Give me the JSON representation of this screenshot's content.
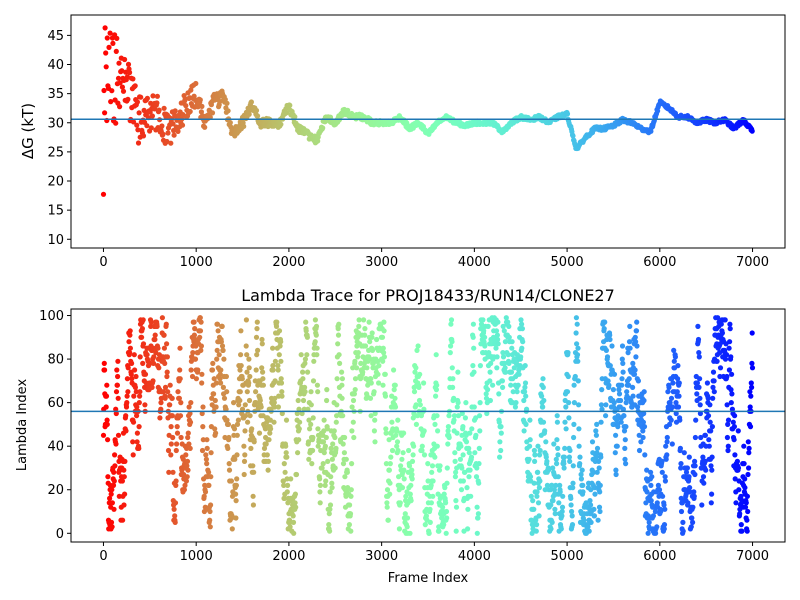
{
  "chart_data": [
    {
      "type": "scatter",
      "title": "",
      "xlabel": "",
      "ylabel": "ΔG (kT)",
      "xlim": [
        -350,
        7350
      ],
      "ylim": [
        8.5,
        48.5
      ],
      "xticks": [
        0,
        1000,
        2000,
        3000,
        4000,
        5000,
        6000,
        7000
      ],
      "yticks": [
        10,
        15,
        20,
        25,
        30,
        35,
        40,
        45
      ],
      "hline": 30.6,
      "colormap": "rainbow (reversed: red at frame 0, violet at last frame)",
      "n_frames": 7000,
      "series": [
        {
          "x": [
            0,
            50,
            100,
            150,
            200,
            300,
            400,
            500,
            600,
            700,
            800,
            900,
            1000,
            1100,
            1200,
            1300,
            1400,
            1500,
            1600,
            1700,
            1800,
            1900,
            2000,
            2100,
            2200,
            2300,
            2400,
            2500,
            2600,
            2700,
            2800,
            2900,
            3000,
            3100,
            3200,
            3300,
            3400,
            3500,
            3600,
            3700,
            3800,
            3900,
            4000,
            4100,
            4200,
            4300,
            4400,
            4500,
            4600,
            4700,
            4800,
            4900,
            5000,
            5100,
            5200,
            5300,
            5400,
            5500,
            5600,
            5700,
            5800,
            5900,
            6000,
            6100,
            6200,
            6300,
            6400,
            6500,
            6600,
            6700,
            6800,
            6900,
            7000
          ],
          "values": [
            30.0,
            44.0,
            40.0,
            36.0,
            38.0,
            34.0,
            30.0,
            32.0,
            32.0,
            28.0,
            31.0,
            33.0,
            35.0,
            30.0,
            34.0,
            34.0,
            28.0,
            30.0,
            33.0,
            30.0,
            30.0,
            30.0,
            33.0,
            29.0,
            28.0,
            27.0,
            31.0,
            30.0,
            32.0,
            31.0,
            31.0,
            30.0,
            30.0,
            30.0,
            31.0,
            29.0,
            30.0,
            28.0,
            30.0,
            31.0,
            30.0,
            29.5,
            30.0,
            30.0,
            30.0,
            28.5,
            30.0,
            31.0,
            30.5,
            31.0,
            30.0,
            31.0,
            31.5,
            25.5,
            27.5,
            29.0,
            29.0,
            29.5,
            30.5,
            30.0,
            29.0,
            28.5,
            33.5,
            32.5,
            31.0,
            31.0,
            30.0,
            30.5,
            30.0,
            30.5,
            29.0,
            30.5,
            28.5
          ],
          "scatter_amplitude": [
            14.0,
            12.0,
            10.0,
            8.0,
            7.0,
            5.0,
            4.5,
            4.0,
            3.5,
            3.0,
            3.0,
            2.5,
            2.0,
            1.5,
            1.5,
            1.5,
            1.0,
            1.0,
            1.0,
            0.8,
            0.8,
            0.8,
            0.8,
            0.6,
            0.6,
            0.6,
            0.5,
            0.5,
            0.5,
            0.5,
            0.5,
            0.4,
            0.4,
            0.4,
            0.4,
            0.4,
            0.4,
            0.4,
            0.3,
            0.3,
            0.3,
            0.3,
            0.3,
            0.3,
            0.3,
            0.3,
            0.3,
            0.3,
            0.3,
            0.3,
            0.3,
            0.3,
            0.3,
            0.3,
            0.3,
            0.3,
            0.3,
            0.3,
            0.3,
            0.3,
            0.3,
            0.3,
            0.3,
            0.3,
            0.3,
            0.3,
            0.3,
            0.3,
            0.3,
            0.3,
            0.3,
            0.3,
            0.3
          ]
        }
      ]
    },
    {
      "type": "scatter",
      "title": "Lambda Trace for PROJ18433/RUN14/CLONE27",
      "xlabel": "Frame Index",
      "ylabel": "Lambda Index",
      "xlim": [
        -350,
        7350
      ],
      "ylim": [
        -4,
        103
      ],
      "xticks": [
        0,
        1000,
        2000,
        3000,
        4000,
        5000,
        6000,
        7000
      ],
      "yticks": [
        0,
        20,
        40,
        60,
        80,
        100
      ],
      "hline": 56,
      "colormap": "rainbow (reversed: red at frame 0, violet at last frame)",
      "n_frames": 7000,
      "lambda_range": [
        0,
        99
      ]
    }
  ]
}
